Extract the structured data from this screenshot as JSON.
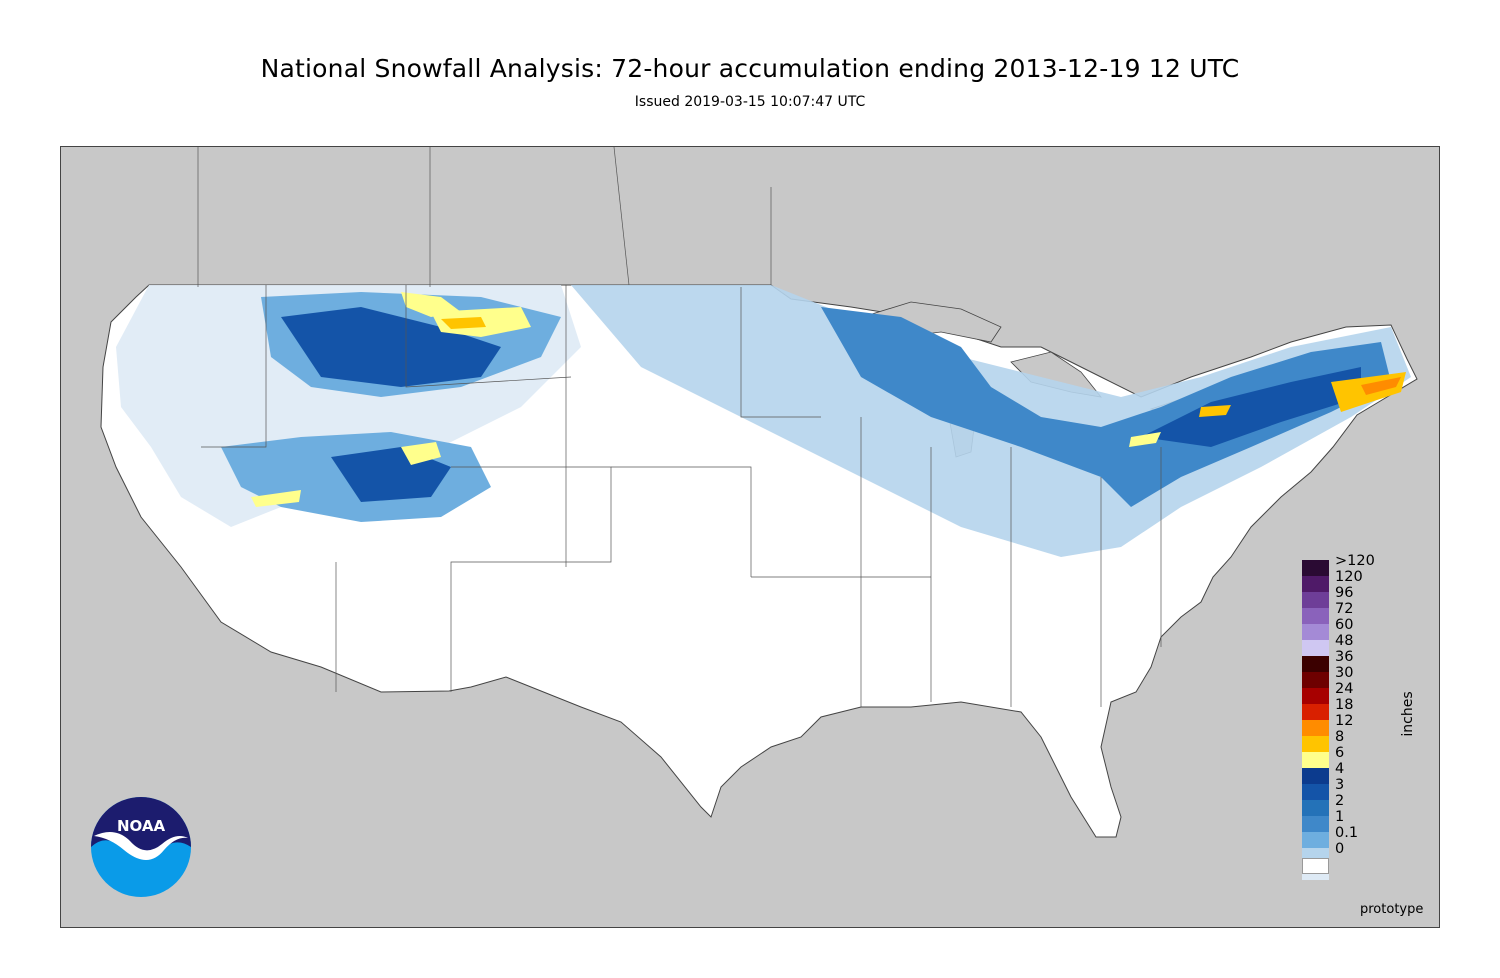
{
  "header": {
    "title": "National Snowfall Analysis: 72-hour accumulation ending 2013-12-19 12 UTC",
    "subtitle": "Issued 2019-03-15 10:07:47 UTC"
  },
  "legend": {
    "units": "inches",
    "bins": [
      {
        "label": ">120",
        "color": "#2a0a33"
      },
      {
        "label": "120",
        "color": "#4f1a68"
      },
      {
        "label": "96",
        "color": "#6e3e98"
      },
      {
        "label": "72",
        "color": "#8a62bb"
      },
      {
        "label": "60",
        "color": "#a48ad6"
      },
      {
        "label": "48",
        "color": "#cfc7f2"
      },
      {
        "label": "36",
        "color": "#3b0000"
      },
      {
        "label": "30",
        "color": "#6e0000"
      },
      {
        "label": "24",
        "color": "#a70000"
      },
      {
        "label": "18",
        "color": "#d92000"
      },
      {
        "label": "12",
        "color": "#ff8c00"
      },
      {
        "label": "8",
        "color": "#ffc400"
      },
      {
        "label": "6",
        "color": "#ffff8c"
      },
      {
        "label": "4",
        "color": "#0c3b8e"
      },
      {
        "label": "3",
        "color": "#1454a8"
      },
      {
        "label": "2",
        "color": "#2472b8"
      },
      {
        "label": "1",
        "color": "#3f88c9"
      },
      {
        "label": "0.1",
        "color": "#6eaedf"
      },
      {
        "label": "0",
        "color": "#b5d4ec"
      },
      {
        "label": "",
        "color": "#deeaf5"
      },
      {
        "label": "",
        "color": "#ffffff"
      }
    ]
  },
  "footer": {
    "prototype_label": "prototype"
  },
  "logo": {
    "text": "NOAA"
  },
  "colors": {
    "land_outside": "#c8c8c8",
    "border": "#444444"
  }
}
